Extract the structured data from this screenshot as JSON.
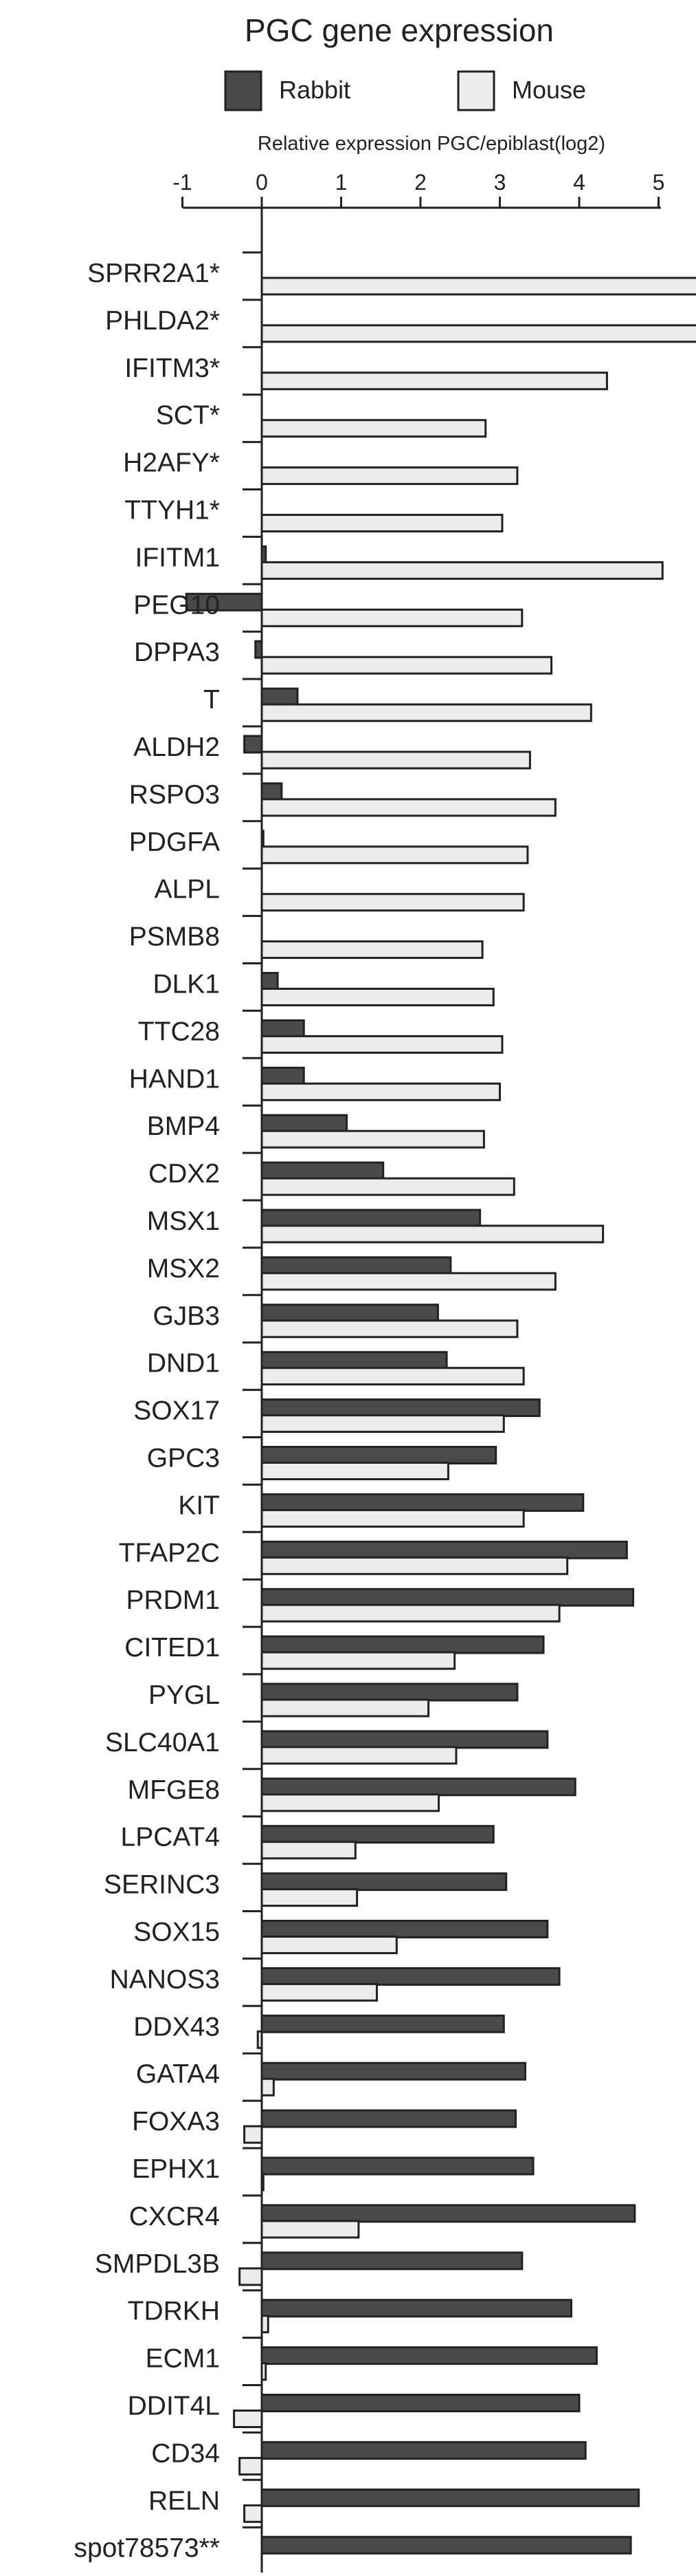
{
  "chart_data": {
    "type": "bar",
    "orientation": "horizontal",
    "title": "PGC gene expression",
    "xlabel": "Relative expression PGC/epiblast(log2)",
    "xlim": [
      -1,
      5.5
    ],
    "xticks": [
      "-1",
      "0",
      "1",
      "2",
      "3",
      "4",
      "5"
    ],
    "legend_position": "top",
    "categories": [
      "SPRR2A1*",
      "PHLDA2*",
      "IFITM3*",
      "SCT*",
      "H2AFY*",
      "TTYH1*",
      "IFITM1",
      "PEG10",
      "DPPA3",
      "T",
      "ALDH2",
      "RSPO3",
      "PDGFA",
      "ALPL",
      "PSMB8",
      "DLK1",
      "TTC28",
      "HAND1",
      "BMP4",
      "CDX2",
      "MSX1",
      "MSX2",
      "GJB3",
      "DND1",
      "SOX17",
      "GPC3",
      "KIT",
      "TFAP2C",
      "PRDM1",
      "CITED1",
      "PYGL",
      "SLC40A1",
      "MFGE8",
      "LPCAT4",
      "SERINC3",
      "SOX15",
      "NANOS3",
      "DDX43",
      "GATA4",
      "FOXA3",
      "EPHX1",
      "CXCR4",
      "SMPDL3B",
      "TDRKH",
      "ECM1",
      "DDIT4L",
      "CD34",
      "RELN",
      "spot78573**"
    ],
    "series": [
      {
        "name": "Rabbit",
        "color": "#4a4a4a",
        "values": [
          0,
          0,
          0,
          0,
          0,
          0,
          0.05,
          -0.95,
          -0.08,
          0.45,
          -0.22,
          0.25,
          0.02,
          0,
          0,
          0.2,
          0.53,
          0.53,
          1.07,
          1.53,
          2.75,
          2.38,
          2.22,
          2.33,
          3.5,
          2.95,
          4.05,
          4.6,
          4.68,
          3.55,
          3.22,
          3.6,
          3.95,
          2.92,
          3.08,
          3.6,
          3.75,
          3.05,
          3.32,
          3.2,
          3.42,
          4.7,
          3.28,
          3.9,
          4.22,
          4.0,
          4.08,
          4.75,
          4.65
        ]
      },
      {
        "name": "Mouse",
        "color": "#ececec",
        "values": [
          5.5,
          5.5,
          4.35,
          2.82,
          3.22,
          3.03,
          5.05,
          3.28,
          3.65,
          4.15,
          3.38,
          3.7,
          3.35,
          3.3,
          2.78,
          2.92,
          3.03,
          3.0,
          2.8,
          3.18,
          4.3,
          3.7,
          3.22,
          3.3,
          3.05,
          2.35,
          3.3,
          3.85,
          3.75,
          2.43,
          2.1,
          2.45,
          2.23,
          1.18,
          1.2,
          1.7,
          1.45,
          -0.05,
          0.15,
          -0.22,
          0.02,
          1.22,
          -0.28,
          0.08,
          0.05,
          -0.35,
          -0.28,
          -0.22,
          0
        ]
      }
    ]
  }
}
